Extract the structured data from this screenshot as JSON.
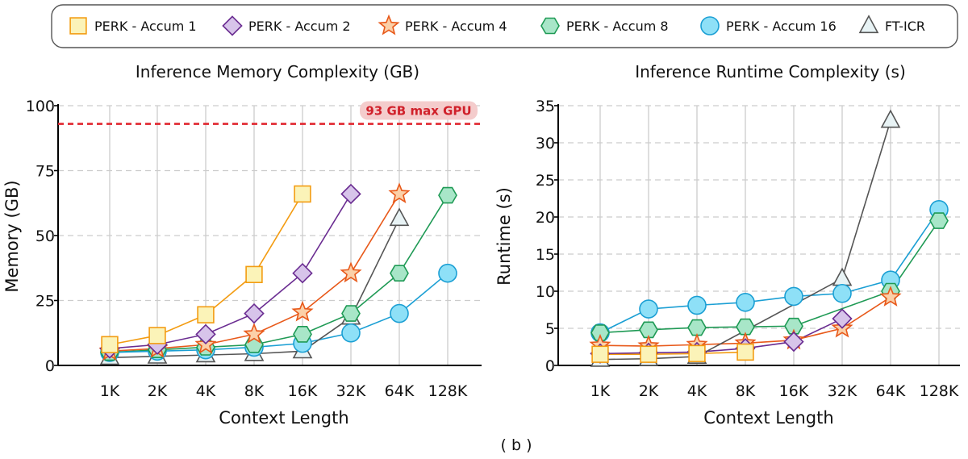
{
  "figure_label": "( b )",
  "legend_position": "top",
  "colors": {
    "grid": "#cccccc",
    "axis": "#000000",
    "max_line": "#e0262f",
    "max_badge_fill": "#f4cccc",
    "max_badge_text": "#d0202a"
  },
  "series_styles": [
    {
      "name": "PERK - Accum 1",
      "marker": "square",
      "stroke": "#f39c12",
      "fill": "#fbf3b8"
    },
    {
      "name": "PERK - Accum 2",
      "marker": "diamond",
      "stroke": "#6a2c91",
      "fill": "#d7c4ea"
    },
    {
      "name": "PERK - Accum 4",
      "marker": "star",
      "stroke": "#e8591a",
      "fill": "#fbd0a8"
    },
    {
      "name": "PERK - Accum 8",
      "marker": "hexagon",
      "stroke": "#1f9a55",
      "fill": "#a8e6c8"
    },
    {
      "name": "PERK - Accum 16",
      "marker": "circle",
      "stroke": "#1b9fd4",
      "fill": "#8ee0f7"
    },
    {
      "name": "FT-ICR",
      "marker": "triangle",
      "stroke": "#555555",
      "fill": "#e8f3f5"
    }
  ],
  "chart_data": [
    {
      "type": "line",
      "title": "Inference Memory Complexity (GB)",
      "xlabel": "Context Length",
      "ylabel": "Memory (GB)",
      "categories": [
        "1K",
        "2K",
        "4K",
        "8K",
        "16K",
        "32K",
        "64K",
        "128K"
      ],
      "ylim": [
        0,
        100
      ],
      "yticks": [
        0,
        25,
        50,
        75,
        100
      ],
      "grid": true,
      "reference_line": {
        "value": 93,
        "label": "93 GB max GPU"
      },
      "series": [
        {
          "name": "PERK - Accum 1",
          "values": [
            8,
            11.5,
            19.5,
            35,
            66,
            null,
            null,
            null
          ]
        },
        {
          "name": "PERK - Accum 2",
          "values": [
            6.5,
            8,
            12,
            20,
            35.5,
            66,
            null,
            null
          ]
        },
        {
          "name": "PERK - Accum 4",
          "values": [
            5.5,
            6.5,
            8,
            12,
            20.5,
            35.5,
            66,
            null
          ]
        },
        {
          "name": "PERK - Accum 8",
          "values": [
            5,
            6,
            7,
            8,
            12,
            20,
            35.5,
            65.5
          ]
        },
        {
          "name": "PERK - Accum 16",
          "values": [
            5,
            5.5,
            6,
            7,
            8.5,
            12.5,
            20,
            35.5
          ]
        },
        {
          "name": "FT-ICR",
          "values": [
            3,
            3.5,
            4,
            4.5,
            5.5,
            18.5,
            56.5,
            null
          ]
        }
      ]
    },
    {
      "type": "line",
      "title": "Inference Runtime Complexity (s)",
      "xlabel": "Context Length",
      "ylabel": "Runtime (s)",
      "categories": [
        "1K",
        "2K",
        "4K",
        "8K",
        "16K",
        "32K",
        "64K",
        "128K"
      ],
      "ylim": [
        0,
        35
      ],
      "yticks": [
        0,
        5,
        10,
        15,
        20,
        25,
        30,
        35
      ],
      "grid": true,
      "series": [
        {
          "name": "PERK - Accum 1",
          "values": [
            1.5,
            1.5,
            1.6,
            1.8,
            null,
            null,
            null,
            null
          ]
        },
        {
          "name": "PERK - Accum 2",
          "values": [
            1.6,
            1.7,
            1.8,
            2.3,
            3.2,
            6.3,
            null,
            null
          ]
        },
        {
          "name": "PERK - Accum 4",
          "values": [
            2.7,
            2.6,
            2.8,
            3.0,
            3.4,
            5.0,
            9.2,
            null
          ]
        },
        {
          "name": "PERK - Accum 8",
          "values": [
            4.4,
            4.8,
            5.1,
            5.2,
            5.3,
            null,
            10.0,
            19.5
          ]
        },
        {
          "name": "PERK - Accum 16",
          "values": [
            4.4,
            7.6,
            8.1,
            8.5,
            9.3,
            9.7,
            11.5,
            21.0
          ]
        },
        {
          "name": "FT-ICR",
          "values": [
            0.8,
            0.9,
            1.2,
            null,
            null,
            11.7,
            33.0,
            null
          ]
        }
      ]
    }
  ]
}
